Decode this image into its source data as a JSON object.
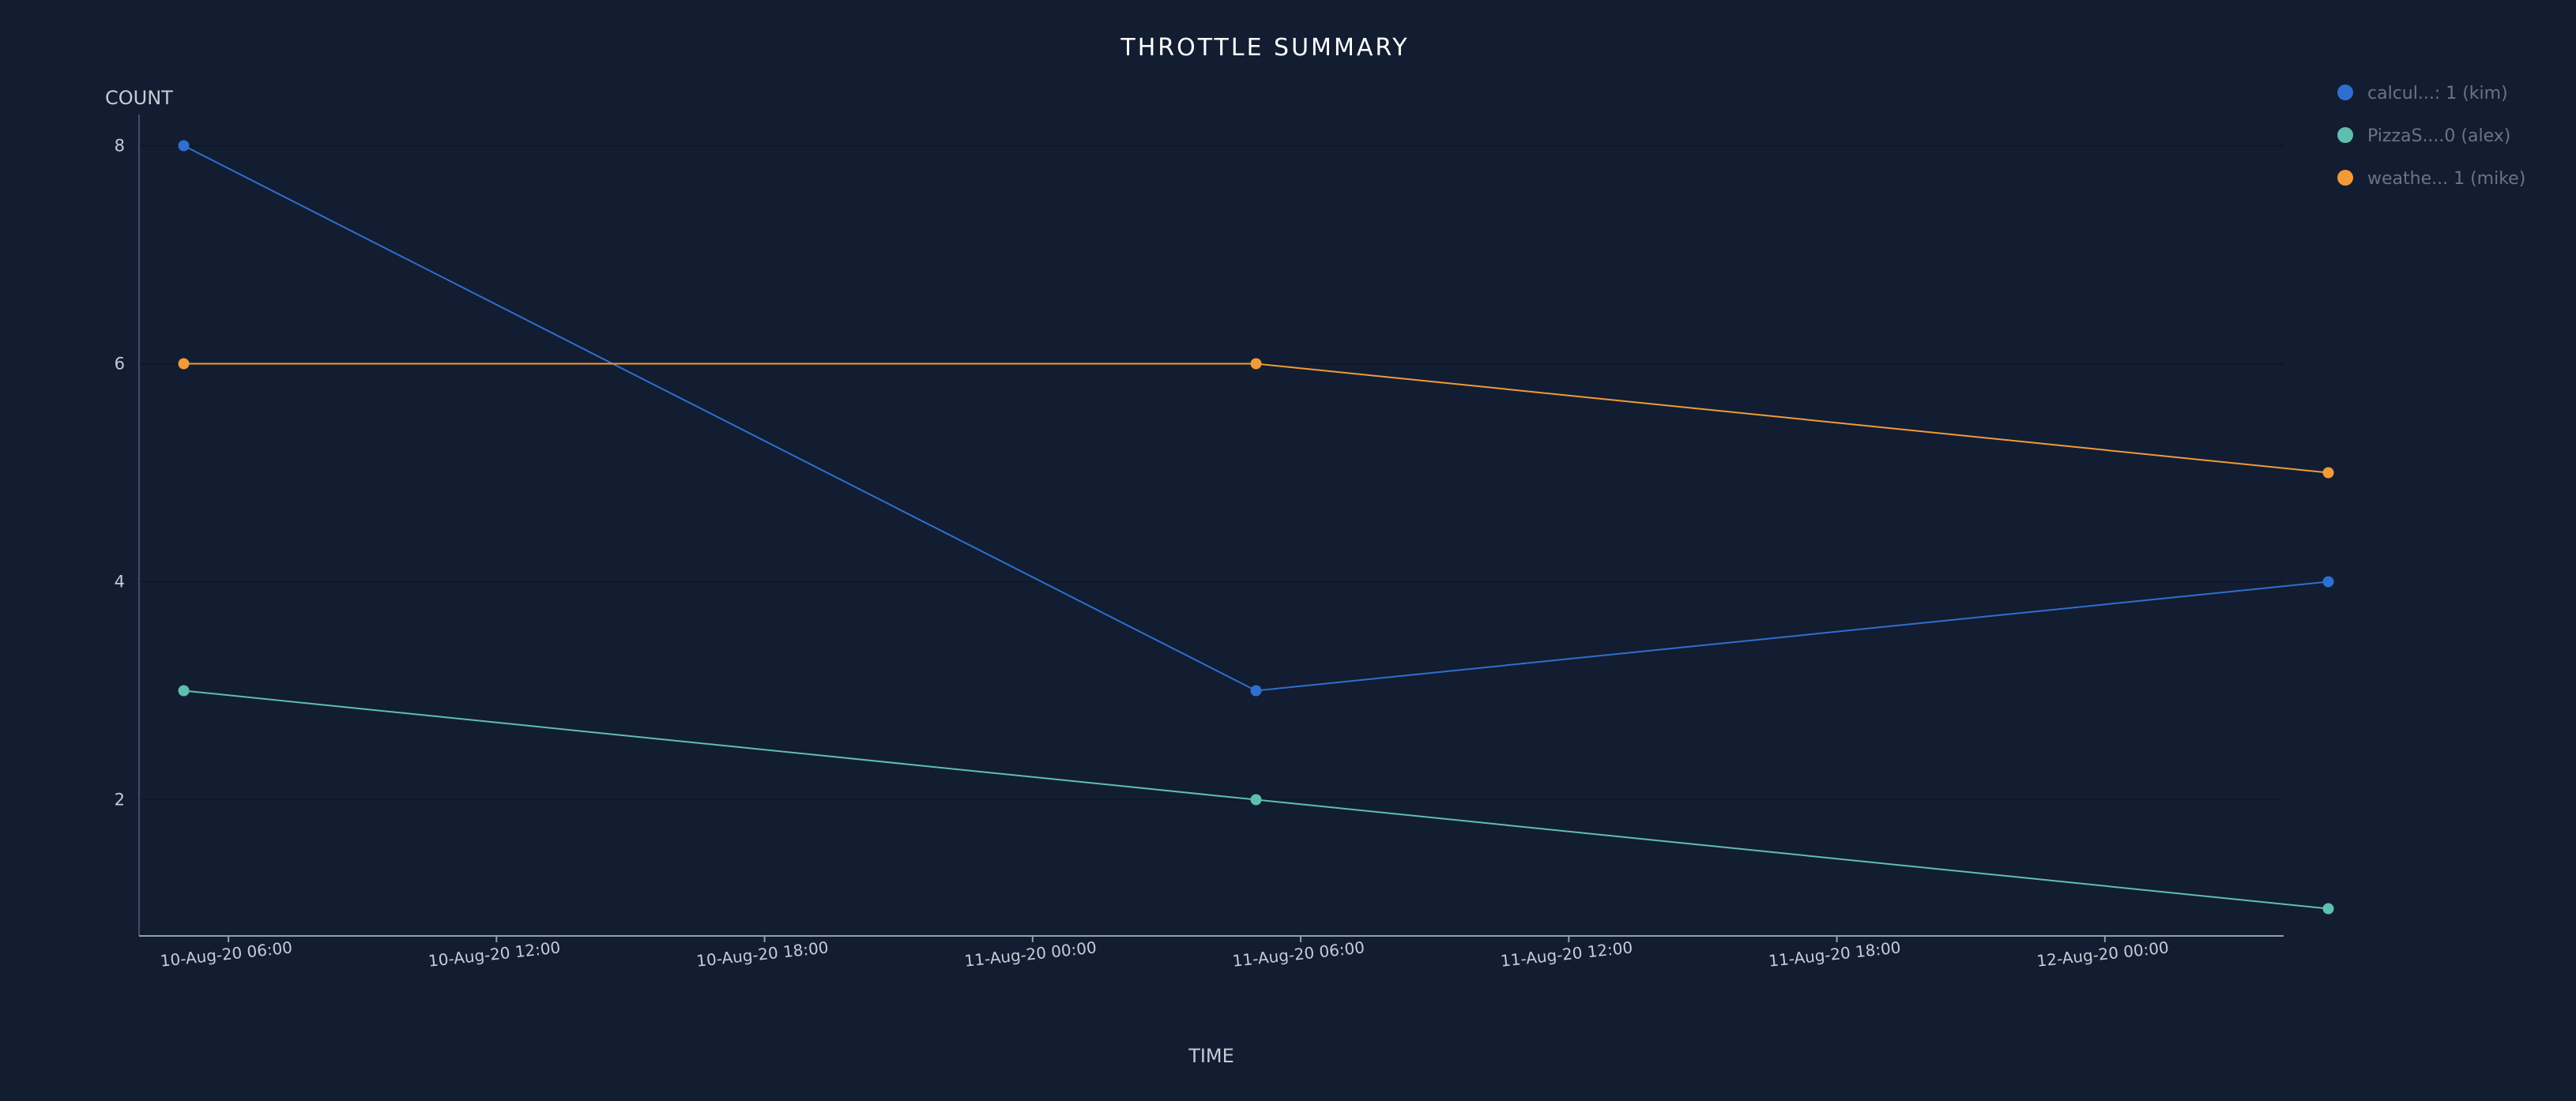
{
  "chart_data": {
    "type": "line",
    "title": "THROTTLE SUMMARY",
    "xlabel": "TIME",
    "ylabel": "COUNT",
    "x_type": "datetime",
    "xlim": [
      "2020-08-10T04:00",
      "2020-08-12T04:00"
    ],
    "ylim": [
      0.75,
      8.25
    ],
    "y_ticks": [
      2,
      4,
      6,
      8
    ],
    "x_ticks": [
      {
        "value": "2020-08-10T06:00",
        "label": "10-Aug-20 06:00"
      },
      {
        "value": "2020-08-10T12:00",
        "label": "10-Aug-20 12:00"
      },
      {
        "value": "2020-08-10T18:00",
        "label": "10-Aug-20 18:00"
      },
      {
        "value": "2020-08-11T00:00",
        "label": "11-Aug-20 00:00"
      },
      {
        "value": "2020-08-11T06:00",
        "label": "11-Aug-20 06:00"
      },
      {
        "value": "2020-08-11T12:00",
        "label": "11-Aug-20 12:00"
      },
      {
        "value": "2020-08-11T18:00",
        "label": "11-Aug-20 18:00"
      },
      {
        "value": "2020-08-12T00:00",
        "label": "12-Aug-20 00:00"
      }
    ],
    "grid": true,
    "legend_position": "top-right",
    "series": [
      {
        "name": "calcul...: 1 (kim)",
        "color": "#2f6fcf",
        "points": [
          {
            "x": "2020-08-10T05:00",
            "y": 8
          },
          {
            "x": "2020-08-11T05:00",
            "y": 3
          },
          {
            "x": "2020-08-12T05:00",
            "y": 4
          }
        ]
      },
      {
        "name": "PizzaS....0 (alex)",
        "color": "#5fbfae",
        "points": [
          {
            "x": "2020-08-10T05:00",
            "y": 3
          },
          {
            "x": "2020-08-11T05:00",
            "y": 2
          },
          {
            "x": "2020-08-12T05:00",
            "y": 1
          }
        ]
      },
      {
        "name": "weathe... 1 (mike)",
        "color": "#f29a37",
        "points": [
          {
            "x": "2020-08-10T05:00",
            "y": 6
          },
          {
            "x": "2020-08-11T05:00",
            "y": 6
          },
          {
            "x": "2020-08-12T05:00",
            "y": 5
          }
        ]
      }
    ]
  }
}
